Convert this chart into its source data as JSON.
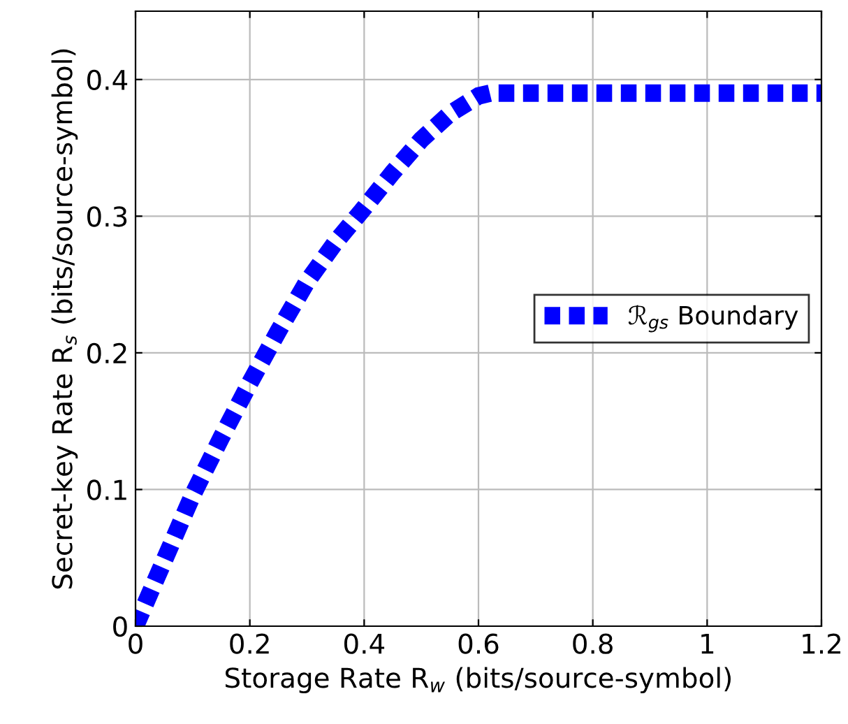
{
  "chart_data": {
    "type": "line",
    "xlabel": "Storage Rate R$_{w}$ (bits/source-symbol)",
    "ylabel": "Secret-key Rate R$_{s}$ (bits/source-symbol)",
    "x": [
      0,
      0.05,
      0.1,
      0.15,
      0.2,
      0.25,
      0.3,
      0.35,
      0.4,
      0.45,
      0.5,
      0.55,
      0.6,
      0.62,
      0.8,
      1.0,
      1.2
    ],
    "series": [
      {
        "name": "ℛ$_{gs}$ Boundary",
        "color": "#0000ff",
        "values": [
          0,
          0.048,
          0.096,
          0.138,
          0.178,
          0.216,
          0.252,
          0.281,
          0.306,
          0.332,
          0.356,
          0.375,
          0.388,
          0.39,
          0.39,
          0.39,
          0.39
        ]
      }
    ],
    "xlim": [
      0,
      1.2
    ],
    "ylim": [
      0,
      0.45
    ],
    "xticks": [
      0,
      0.2,
      0.4,
      0.6,
      0.8,
      1,
      1.2
    ],
    "yticks": [
      0,
      0.1,
      0.2,
      0.3,
      0.4
    ],
    "grid": true,
    "legend": "right",
    "marker": "none",
    "line_style": "dotted"
  }
}
